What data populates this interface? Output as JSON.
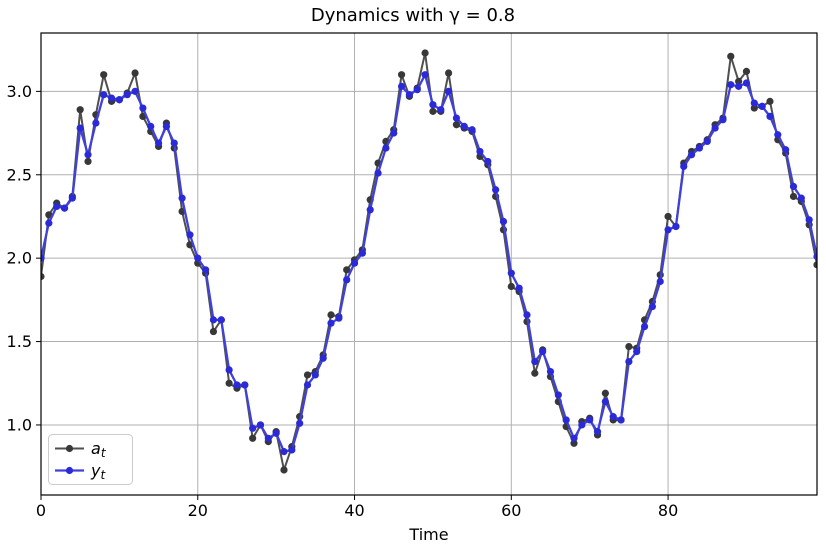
{
  "figure": {
    "background": "#ffffff"
  },
  "chart_data": {
    "type": "line",
    "title": "Dynamics with γ = 0.8",
    "xlabel": "Time",
    "ylabel": "",
    "xlim": [
      0,
      99
    ],
    "ylim": [
      0.58,
      3.35
    ],
    "x_ticks": [
      0,
      20,
      40,
      60,
      80
    ],
    "y_ticks": [
      "1.0",
      "1.5",
      "2.0",
      "2.5",
      "3.0"
    ],
    "grid": true,
    "legend_position": "lower left",
    "x_start": 0,
    "x_step": 1,
    "series": [
      {
        "name": "a_t",
        "legend_main": "a",
        "legend_sub": "t",
        "line_color": "#4f4f4f",
        "marker_color": "#383838",
        "line_width": 2.0,
        "marker_radius": 3.6,
        "values": [
          1.89,
          2.26,
          2.33,
          2.3,
          2.37,
          2.89,
          2.58,
          2.86,
          3.1,
          2.94,
          2.95,
          2.99,
          3.11,
          2.85,
          2.76,
          2.67,
          2.81,
          2.66,
          2.28,
          2.08,
          1.97,
          1.91,
          1.56,
          1.63,
          1.25,
          1.22,
          1.24,
          0.92,
          1.0,
          0.9,
          0.96,
          0.73,
          0.87,
          1.05,
          1.3,
          1.32,
          1.42,
          1.66,
          1.65,
          1.93,
          1.99,
          2.05,
          2.35,
          2.57,
          2.7,
          2.77,
          3.1,
          2.97,
          3.02,
          3.23,
          2.88,
          2.88,
          3.11,
          2.8,
          2.78,
          2.76,
          2.61,
          2.56,
          2.37,
          2.17,
          1.83,
          1.8,
          1.62,
          1.31,
          1.45,
          1.29,
          1.14,
          0.99,
          0.89,
          1.02,
          1.04,
          0.94,
          1.19,
          1.03,
          1.03,
          1.47,
          1.46,
          1.63,
          1.74,
          1.9,
          2.25,
          2.19,
          2.57,
          2.64,
          2.67,
          2.71,
          2.8,
          2.84,
          3.21,
          3.06,
          3.12,
          2.9,
          2.91,
          2.94,
          2.71,
          2.63,
          2.37,
          2.34,
          2.2,
          1.96
        ]
      },
      {
        "name": "y_t",
        "legend_main": "y",
        "legend_sub": "t",
        "line_color": "#4040df",
        "marker_color": "#2a2ad8",
        "line_width": 2.3,
        "marker_radius": 3.6,
        "values": [
          2.0,
          2.21,
          2.31,
          2.3,
          2.36,
          2.78,
          2.62,
          2.81,
          2.98,
          2.96,
          2.95,
          2.98,
          3.0,
          2.9,
          2.79,
          2.69,
          2.79,
          2.69,
          2.36,
          2.14,
          2.0,
          1.93,
          1.63,
          1.63,
          1.33,
          1.24,
          1.24,
          0.98,
          1.0,
          0.92,
          0.95,
          0.84,
          0.85,
          1.01,
          1.24,
          1.3,
          1.4,
          1.61,
          1.64,
          1.87,
          1.97,
          2.03,
          2.29,
          2.51,
          2.66,
          2.75,
          3.03,
          2.98,
          3.01,
          3.1,
          2.92,
          2.89,
          3.0,
          2.84,
          2.79,
          2.77,
          2.64,
          2.58,
          2.41,
          2.22,
          1.91,
          1.82,
          1.66,
          1.38,
          1.44,
          1.32,
          1.18,
          1.03,
          0.92,
          1.0,
          1.03,
          0.96,
          1.14,
          1.05,
          1.03,
          1.38,
          1.44,
          1.59,
          1.71,
          1.86,
          2.17,
          2.19,
          2.55,
          2.62,
          2.66,
          2.7,
          2.78,
          2.83,
          3.04,
          3.03,
          3.05,
          2.93,
          2.91,
          2.85,
          2.74,
          2.65,
          2.43,
          2.36,
          2.23,
          2.01
        ]
      }
    ]
  }
}
